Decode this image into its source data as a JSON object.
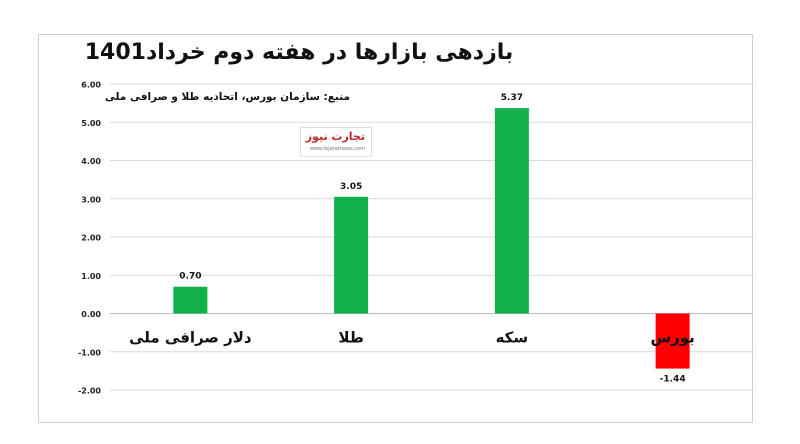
{
  "title": "بازدهی بازارها در هفته دوم خرداد1401",
  "source": "منبع: سازمان بورس، اتحادیه طلا و صرافی ملی",
  "logo": {
    "name": "تجارت نیوز",
    "url": "www.tejaratnews.com"
  },
  "chart_data": {
    "type": "bar",
    "categories": [
      "دلار صرافی ملی",
      "طلا",
      "سکه",
      "بورس"
    ],
    "values": [
      0.7,
      3.05,
      5.37,
      -1.44
    ],
    "value_labels": [
      "0.70",
      "3.05",
      "5.37",
      "-1.44"
    ],
    "yticks": [
      "6.00",
      "5.00",
      "4.00",
      "3.00",
      "2.00",
      "1.00",
      "0.00",
      "-1.00",
      "-2.00"
    ],
    "ylim": [
      -2,
      6
    ],
    "grid": true,
    "colors": {
      "positive": "#12b04b",
      "negative": "#ff0000"
    }
  }
}
